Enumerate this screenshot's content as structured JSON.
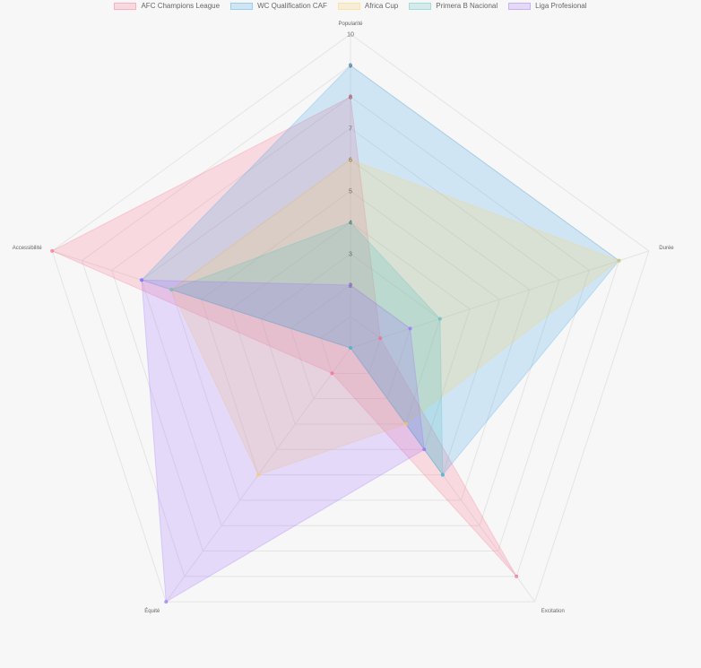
{
  "chart_data": {
    "type": "radar",
    "axes": [
      "Popularité",
      "Durée",
      "Excitation",
      "Équité",
      "Accessibilité"
    ],
    "r_range": [
      0,
      10
    ],
    "ticks": [
      2,
      3,
      4,
      5,
      6,
      7,
      8,
      9,
      10
    ],
    "series": [
      {
        "name": "AFC Champions League",
        "values": [
          8,
          1,
          9,
          1,
          10
        ],
        "color": "#ff6384"
      },
      {
        "name": "WC Qualification CAF",
        "values": [
          9,
          9,
          5,
          0,
          7
        ],
        "color": "#36a2eb"
      },
      {
        "name": "Africa Cup",
        "values": [
          6,
          9,
          3,
          5,
          6
        ],
        "color": "#ffce56"
      },
      {
        "name": "Primera B Nacional",
        "values": [
          4,
          3,
          5,
          0,
          6
        ],
        "color": "#4bc0c0"
      },
      {
        "name": "Liga Profesional",
        "values": [
          2,
          2,
          4,
          10,
          7
        ],
        "color": "#9966ff"
      }
    ],
    "legend_position": "top",
    "grid": true
  }
}
